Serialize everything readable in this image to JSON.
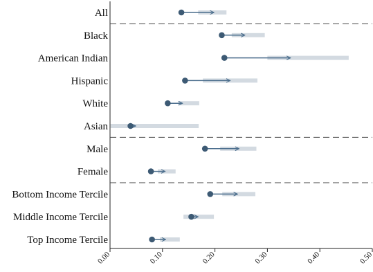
{
  "chart_data": {
    "type": "dot-arrow-range",
    "title": "",
    "xlabel": "",
    "ylabel": "",
    "xlim": [
      0.0,
      0.5
    ],
    "x_ticks": [
      {
        "value": 0.0,
        "label": "0.00"
      },
      {
        "value": 0.1,
        "label": "0.10"
      },
      {
        "value": 0.2,
        "label": "0.20"
      },
      {
        "value": 0.3,
        "label": "0.30"
      },
      {
        "value": 0.4,
        "label": "0.40"
      },
      {
        "value": 0.5,
        "label": "0.50"
      }
    ],
    "groups": [
      {
        "rows": [
          {
            "label": "All",
            "start": 0.136,
            "end": 0.198,
            "range": [
              0.168,
              0.222
            ]
          }
        ]
      },
      {
        "rows": [
          {
            "label": "Black",
            "start": 0.213,
            "end": 0.257,
            "range": [
              0.232,
              0.295
            ]
          },
          {
            "label": "American Indian",
            "start": 0.218,
            "end": 0.344,
            "range": [
              0.3,
              0.455
            ]
          },
          {
            "label": "Hispanic",
            "start": 0.143,
            "end": 0.229,
            "range": [
              0.177,
              0.281
            ]
          },
          {
            "label": "White",
            "start": 0.11,
            "end": 0.138,
            "range": [
              0.13,
              0.17
            ]
          },
          {
            "label": "Asian",
            "start": 0.039,
            "end": 0.049,
            "range": [
              0.001,
              0.169
            ]
          }
        ]
      },
      {
        "rows": [
          {
            "label": "Male",
            "start": 0.181,
            "end": 0.246,
            "range": [
              0.21,
              0.279
            ]
          },
          {
            "label": "Female",
            "start": 0.078,
            "end": 0.105,
            "range": [
              0.091,
              0.125
            ]
          }
        ]
      },
      {
        "rows": [
          {
            "label": "Bottom Income Tercile",
            "start": 0.191,
            "end": 0.243,
            "range": [
              0.214,
              0.277
            ]
          },
          {
            "label": "Middle Income Tercile",
            "start": 0.155,
            "end": 0.168,
            "range": [
              0.14,
              0.198
            ]
          },
          {
            "label": "Top Income Tercile",
            "start": 0.08,
            "end": 0.106,
            "range": [
              0.095,
              0.133
            ]
          }
        ]
      }
    ],
    "colors": {
      "dot": "#3d5a74",
      "arrow": "#4a6d8c",
      "range_bar": "#d3dae1",
      "axis": "#222222",
      "separator": "#444444"
    },
    "grid": false,
    "legend": "none"
  }
}
